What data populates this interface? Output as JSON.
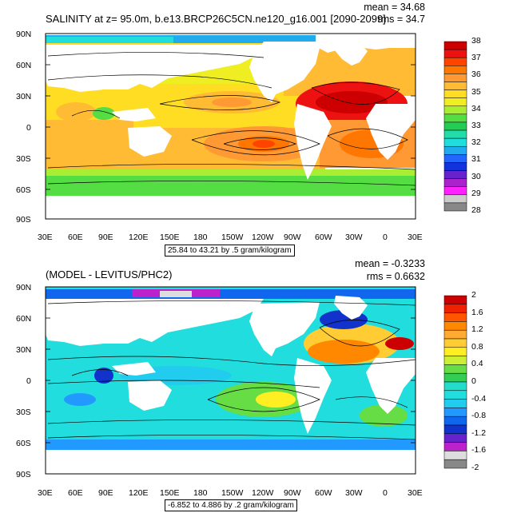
{
  "panels": [
    {
      "title": "SALINITY at z=  95.0m, b.e13.BRCP26C5CN.ne120_g16.001 [2090-2099]",
      "mean_text": "mean = 34.68",
      "rms_text": "rms = 34.7",
      "range_text": "25.84 to 43.21 by .5 gram/kilogram",
      "colorbar_labels": [
        "38",
        "37",
        "36",
        "35",
        "34",
        "33",
        "32",
        "31",
        "30",
        "29",
        "28"
      ],
      "colorbar_colors": [
        "#cc0000",
        "#ee1111",
        "#ff4400",
        "#ff7700",
        "#ff9933",
        "#ffbb33",
        "#ffdd22",
        "#eeee22",
        "#aaee33",
        "#55dd44",
        "#22cc55",
        "#22ddaa",
        "#22dddd",
        "#22aaee",
        "#2266ff",
        "#1133dd",
        "#6622cc",
        "#aa22cc",
        "#ff22ff",
        "#cccccc",
        "#888888"
      ]
    },
    {
      "title": "(MODEL - LEVITUS/PHC2)",
      "mean_text": "mean = -0.3233",
      "rms_text": "rms = 0.6632",
      "range_text": "-6.852 to 4.886 by .2 gram/kilogram",
      "colorbar_labels": [
        "2",
        "1.6",
        "1.2",
        "0.8",
        "0.4",
        "0",
        "-0.4",
        "-0.8",
        "-1.2",
        "-1.6",
        "-2"
      ],
      "colorbar_colors": [
        "#cc0000",
        "#ee2200",
        "#ff5500",
        "#ff8800",
        "#ffaa33",
        "#ffcc33",
        "#ffee22",
        "#ccee33",
        "#66dd44",
        "#33cc55",
        "#22ddcc",
        "#22dddd",
        "#22ccee",
        "#2299ff",
        "#1166ee",
        "#1133cc",
        "#6622cc",
        "#bb22cc",
        "#dddddd",
        "#888888"
      ]
    }
  ],
  "lat_labels": [
    "90N",
    "60N",
    "30N",
    "0",
    "30S",
    "60S",
    "90S"
  ],
  "lon_labels": [
    "30E",
    "60E",
    "90E",
    "120E",
    "150E",
    "180",
    "150W",
    "120W",
    "90W",
    "60W",
    "30W",
    "0",
    "30E"
  ]
}
